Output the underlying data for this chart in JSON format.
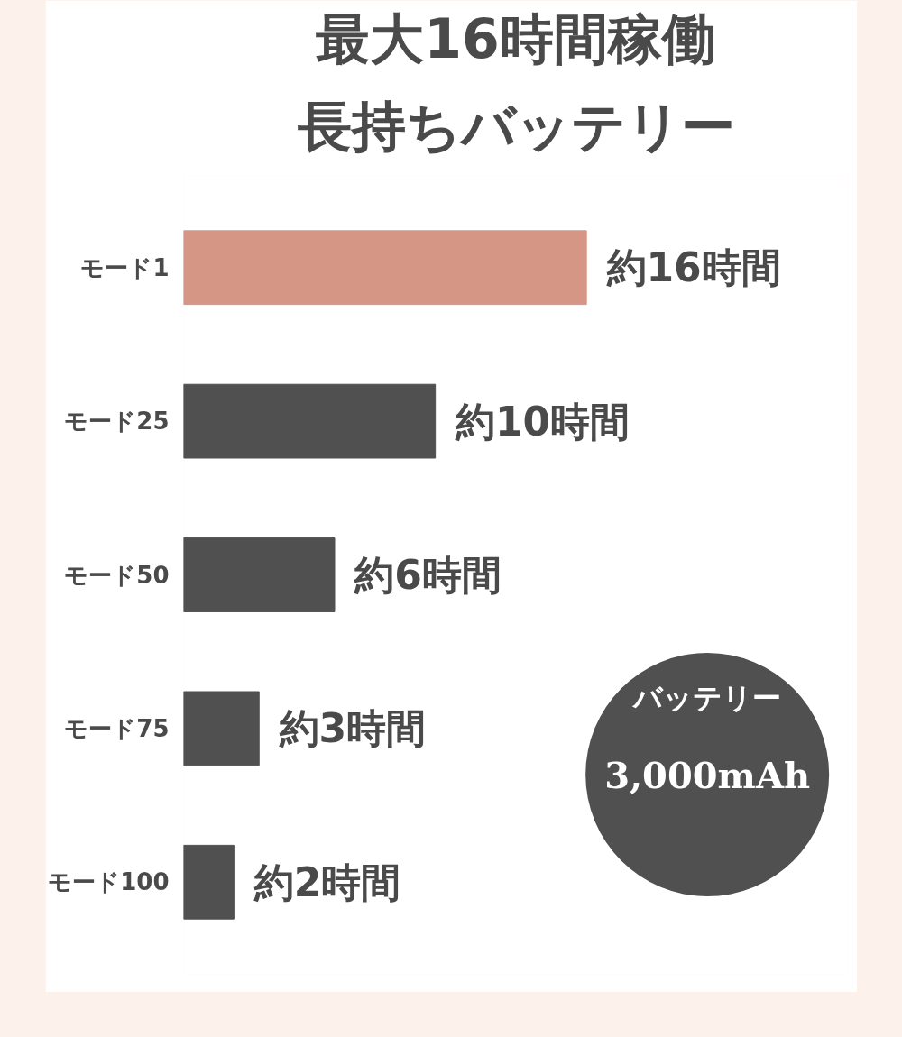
{
  "chart_data": {
    "type": "bar",
    "orientation": "horizontal",
    "title": "最大16時間稼働",
    "subtitle": "長持ちバッテリー",
    "categories": [
      "モード1",
      "モード25",
      "モード50",
      "モード75",
      "モード100"
    ],
    "values": [
      16,
      10,
      6,
      3,
      2
    ],
    "colors": [
      "#d69685",
      "#505050",
      "#505050",
      "#505050",
      "#505050"
    ],
    "value_labels": [
      "約16時間",
      "約10時間",
      "約6時間",
      "約3時間",
      "約2時間"
    ],
    "annotations": [
      "バッテリー",
      "3,000mAh"
    ],
    "grid": false
  }
}
